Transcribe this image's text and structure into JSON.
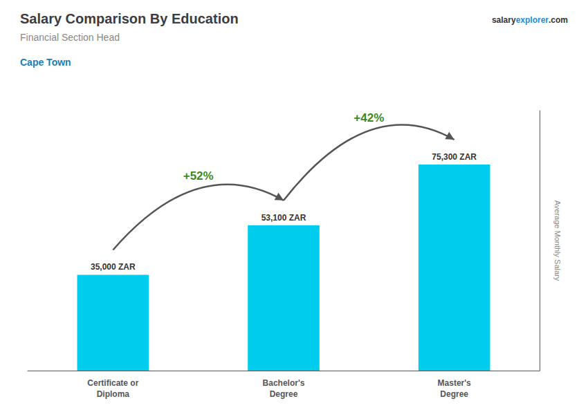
{
  "chart_data": {
    "type": "bar",
    "title": "Salary Comparison By Education",
    "subtitle": "Financial Section Head",
    "city": "Cape Town",
    "watermark": [
      "salary",
      "explorer",
      ".com"
    ],
    "ylabel": "Average Monthly Salary",
    "categories": [
      "Certificate or\nDiploma",
      "Bachelor's\nDegree",
      "Master's\nDegree"
    ],
    "values": [
      35000,
      53100,
      75300
    ],
    "value_labels": [
      "35,000 ZAR",
      "53,100 ZAR",
      "75,300 ZAR"
    ],
    "data_labels": true,
    "annotations": [
      "+52%",
      "+42%"
    ],
    "color": "#00ccee",
    "ylim": [
      0,
      95000
    ],
    "grid": false,
    "tick_labels": "x"
  }
}
